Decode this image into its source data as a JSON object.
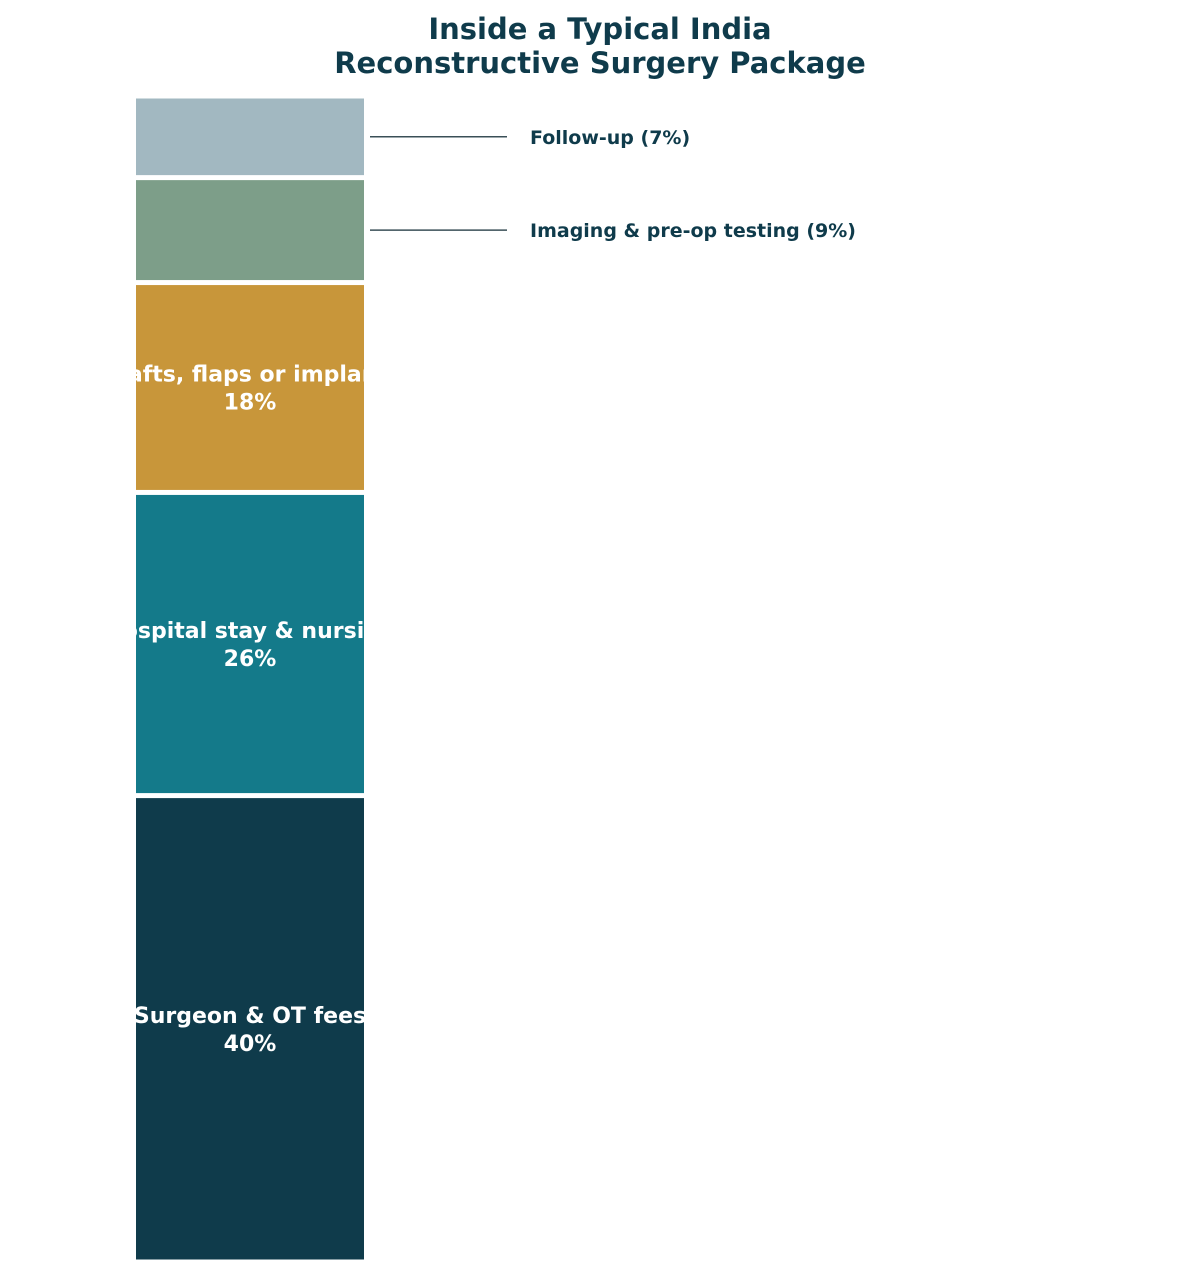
{
  "chart_data": {
    "type": "bar",
    "subtype": "stacked-single-column",
    "title": [
      "Inside a Typical India",
      "Reconstructive Surgery Package"
    ],
    "value_unit": "%",
    "total": 100,
    "segments": [
      {
        "label": "Surgeon & OT fees",
        "value": 40,
        "color": "#0f3b4b",
        "label_position": "inside"
      },
      {
        "label": "Hospital stay & nursing",
        "value": 26,
        "color": "#147a8a",
        "label_position": "inside"
      },
      {
        "label": "Grafts, flaps or implants",
        "value": 18,
        "color": "#c8963a",
        "label_position": "inside"
      },
      {
        "label": "Imaging & pre-op testing",
        "value": 9,
        "color": "#7d9e89",
        "label_position": "callout"
      },
      {
        "label": "Follow-up",
        "value": 7,
        "color": "#a2b8c1",
        "label_position": "callout"
      }
    ],
    "grid": false,
    "legend": "none",
    "text_color": "#0f3b4b",
    "inside_label_color": "#ffffff"
  }
}
